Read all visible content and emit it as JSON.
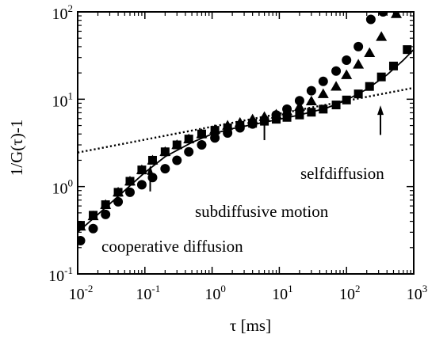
{
  "chart_data": {
    "type": "scatter",
    "xlabel": "τ [ms]",
    "ylabel": "1/G(τ)-1",
    "xscale": "log",
    "yscale": "log",
    "xlim": [
      0.01,
      1000
    ],
    "ylim": [
      0.1,
      100
    ],
    "x_ticks": [
      {
        "base": "10",
        "exp": "-2",
        "value": 0.01
      },
      {
        "base": "10",
        "exp": "-1",
        "value": 0.1
      },
      {
        "base": "10",
        "exp": "0",
        "value": 1
      },
      {
        "base": "10",
        "exp": "1",
        "value": 10
      },
      {
        "base": "10",
        "exp": "2",
        "value": 100
      },
      {
        "base": "10",
        "exp": "3",
        "value": 1000
      }
    ],
    "y_ticks": [
      {
        "base": "10",
        "exp": "-1",
        "value": 0.1
      },
      {
        "base": "10",
        "exp": "0",
        "value": 1
      },
      {
        "base": "10",
        "exp": "1",
        "value": 10
      },
      {
        "base": "10",
        "exp": "2",
        "value": 100
      }
    ],
    "grid": false,
    "legend": "none",
    "series": [
      {
        "marker": "circle",
        "color": "#000000",
        "points": [
          [
            0.011,
            0.24
          ],
          [
            0.017,
            0.33
          ],
          [
            0.026,
            0.48
          ],
          [
            0.04,
            0.67
          ],
          [
            0.06,
            0.86
          ],
          [
            0.09,
            1.05
          ],
          [
            0.13,
            1.27
          ],
          [
            0.2,
            1.6
          ],
          [
            0.3,
            2.0
          ],
          [
            0.45,
            2.5
          ],
          [
            0.7,
            3.0
          ],
          [
            1.1,
            3.6
          ],
          [
            1.7,
            4.1
          ],
          [
            2.6,
            4.7
          ],
          [
            4.0,
            5.2
          ],
          [
            6.0,
            5.8
          ],
          [
            9.0,
            6.6
          ],
          [
            13,
            7.7
          ],
          [
            20,
            9.6
          ],
          [
            30,
            12.5
          ],
          [
            45,
            16
          ],
          [
            70,
            21
          ],
          [
            100,
            28
          ],
          [
            150,
            40
          ],
          [
            230,
            82
          ],
          [
            350,
            100
          ]
        ]
      },
      {
        "marker": "triangle",
        "color": "#000000",
        "points": [
          [
            0.011,
            0.35
          ],
          [
            0.017,
            0.46
          ],
          [
            0.026,
            0.62
          ],
          [
            0.04,
            0.86
          ],
          [
            0.06,
            1.15
          ],
          [
            0.09,
            1.55
          ],
          [
            0.13,
            2.0
          ],
          [
            0.2,
            2.5
          ],
          [
            0.3,
            3.0
          ],
          [
            0.45,
            3.5
          ],
          [
            0.7,
            4.0
          ],
          [
            1.1,
            4.5
          ],
          [
            1.7,
            5.0
          ],
          [
            2.6,
            5.4
          ],
          [
            4.0,
            5.9
          ],
          [
            6.0,
            6.3
          ],
          [
            9.0,
            6.7
          ],
          [
            13,
            7.3
          ],
          [
            20,
            8.2
          ],
          [
            30,
            9.5
          ],
          [
            45,
            11.5
          ],
          [
            70,
            14
          ],
          [
            100,
            19
          ],
          [
            150,
            25
          ],
          [
            220,
            34
          ],
          [
            330,
            52
          ],
          [
            550,
            95
          ]
        ]
      },
      {
        "marker": "square",
        "color": "#000000",
        "points": [
          [
            0.011,
            0.36
          ],
          [
            0.017,
            0.47
          ],
          [
            0.026,
            0.62
          ],
          [
            0.04,
            0.86
          ],
          [
            0.06,
            1.15
          ],
          [
            0.09,
            1.55
          ],
          [
            0.13,
            2.0
          ],
          [
            0.2,
            2.5
          ],
          [
            0.3,
            3.0
          ],
          [
            0.45,
            3.5
          ],
          [
            0.7,
            4.0
          ],
          [
            1.1,
            4.4
          ],
          [
            1.7,
            4.7
          ],
          [
            2.6,
            5.0
          ],
          [
            4.0,
            5.3
          ],
          [
            6.0,
            5.6
          ],
          [
            9.0,
            5.9
          ],
          [
            13,
            6.2
          ],
          [
            20,
            6.6
          ],
          [
            30,
            7.1
          ],
          [
            45,
            7.7
          ],
          [
            70,
            8.6
          ],
          [
            100,
            9.8
          ],
          [
            150,
            11.5
          ],
          [
            220,
            14
          ],
          [
            330,
            18
          ],
          [
            500,
            24
          ],
          [
            800,
            37
          ]
        ]
      }
    ],
    "fit_line": {
      "style": "solid",
      "points": [
        [
          0.01,
          0.3
        ],
        [
          0.02,
          0.48
        ],
        [
          0.05,
          0.9
        ],
        [
          0.1,
          1.45
        ],
        [
          0.2,
          2.2
        ],
        [
          0.5,
          3.2
        ],
        [
          1,
          4.0
        ],
        [
          2,
          4.6
        ],
        [
          5,
          5.3
        ],
        [
          10,
          5.9
        ],
        [
          20,
          6.6
        ],
        [
          50,
          7.9
        ],
        [
          100,
          9.8
        ],
        [
          200,
          13
        ],
        [
          400,
          19
        ],
        [
          700,
          28
        ],
        [
          1000,
          37
        ]
      ]
    },
    "reference_line": {
      "style": "dotted",
      "points": [
        [
          0.01,
          2.45
        ],
        [
          1000,
          13.5
        ]
      ]
    },
    "annotations": [
      {
        "text": "cooperative diffusion",
        "arrow_at_x": 0.12,
        "arrow_from_y": 0.88,
        "arrow_to_y": 1.75
      },
      {
        "text": "subdiffusive motion",
        "arrow_at_x": 6,
        "arrow_from_y": 3.4,
        "arrow_to_y": 6.5
      },
      {
        "text": "selfdiffusion",
        "arrow_at_x": 320,
        "arrow_from_y": 3.9,
        "arrow_to_y": 8.5
      }
    ]
  }
}
